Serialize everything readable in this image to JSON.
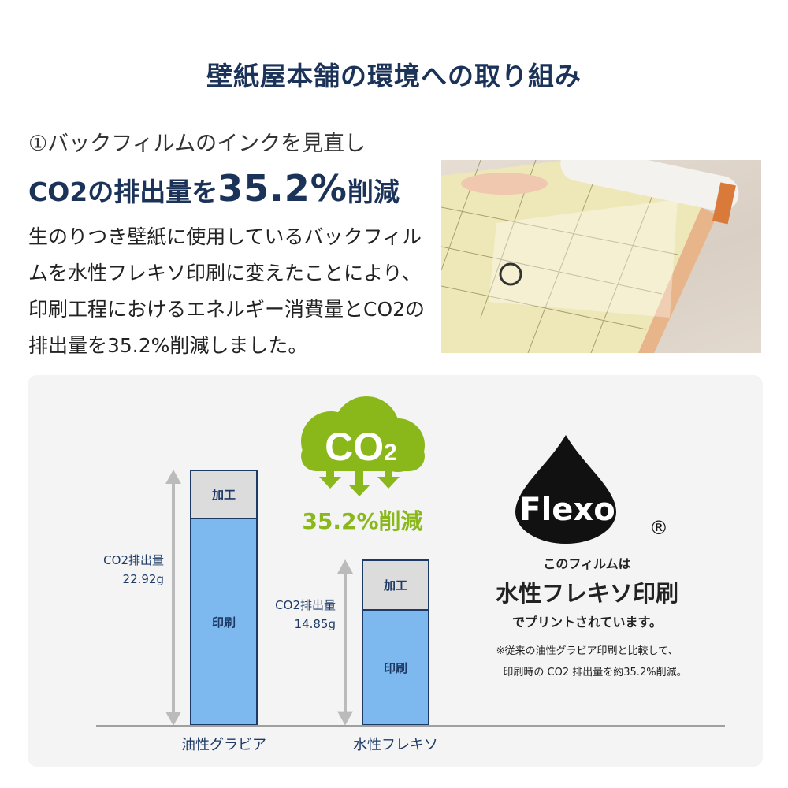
{
  "title": "壁紙屋本舗の環境への取り組み",
  "subtitle": "①バックフィルムのインクを見直し",
  "headline": {
    "prefix": "CO2の排出量を",
    "value": "35.2%",
    "suffix": "削減"
  },
  "paragraph": "生のりつき壁紙に使用しているバックフィルムを水性フレキソ印刷に変えたことにより、印刷工程におけるエネルギー消費量とCO2の排出量を35.2%削減しました。",
  "cloud": {
    "label": "CO",
    "subscript": "2",
    "reduction": "35.2%削減"
  },
  "flexo": {
    "logo_text": "Flexo",
    "registered": "®",
    "line1": "このフィルムは",
    "line2": "水性フレキソ印刷",
    "line3": "でプリントされています。",
    "note1": "※従来の油性グラビア印刷と比較して、",
    "note2": "印刷時の CO2 排出量を約35.2%削減。"
  },
  "colors": {
    "navy": "#1b3358",
    "bar_blue": "#7db9ef",
    "cap_gray": "#dcdcdc",
    "green": "#8ab81a",
    "panel": "#f4f4f4"
  },
  "chart_data": {
    "type": "bar",
    "stacked": true,
    "categories": [
      "油性グラビア",
      "水性フレキソ"
    ],
    "series": [
      {
        "name": "印刷",
        "values": [
          18.6,
          10.5
        ]
      },
      {
        "name": "加工",
        "values": [
          4.3,
          4.4
        ]
      }
    ],
    "totals": [
      22.92,
      14.85
    ],
    "total_label": "CO2排出量",
    "total_texts": [
      "22.92g",
      "14.85g"
    ],
    "ylim": [
      0,
      22.92
    ]
  }
}
